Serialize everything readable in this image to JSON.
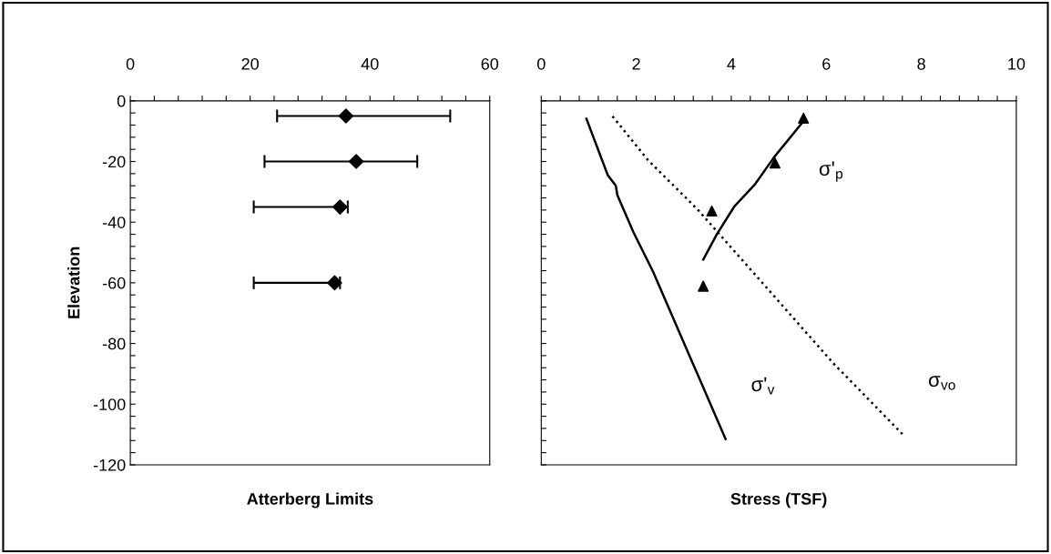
{
  "chart_data": [
    {
      "type": "scatter",
      "xlabel": "Atterberg Limits",
      "ylabel": "Elevation",
      "marker": "diamond",
      "grid": false,
      "legend": false,
      "xlim": [
        0,
        60
      ],
      "ylim": [
        -120,
        0
      ],
      "xticks": [
        0,
        {
          "value": 4,
          "label": null
        },
        {
          "value": 8,
          "label": null
        },
        {
          "value": 12,
          "label": null
        },
        {
          "value": 16,
          "label": null
        },
        20,
        {
          "value": 24,
          "label": null
        },
        {
          "value": 28,
          "label": null
        },
        {
          "value": 32,
          "label": null
        },
        {
          "value": 36,
          "label": null
        },
        40,
        {
          "value": 44,
          "label": null
        },
        {
          "value": 48,
          "label": null
        },
        {
          "value": 52,
          "label": null
        },
        {
          "value": 56,
          "label": null
        },
        60
      ],
      "yticks": [
        0,
        {
          "value": -4,
          "label": null
        },
        {
          "value": -8,
          "label": null
        },
        {
          "value": -12,
          "label": null
        },
        {
          "value": -16,
          "label": null
        },
        -20,
        {
          "value": -24,
          "label": null
        },
        {
          "value": -28,
          "label": null
        },
        {
          "value": -32,
          "label": null
        },
        {
          "value": -36,
          "label": null
        },
        -40,
        {
          "value": -44,
          "label": null
        },
        {
          "value": -48,
          "label": null
        },
        {
          "value": -52,
          "label": null
        },
        {
          "value": -56,
          "label": null
        },
        -60,
        {
          "value": -64,
          "label": null
        },
        {
          "value": -68,
          "label": null
        },
        {
          "value": -72,
          "label": null
        },
        {
          "value": -76,
          "label": null
        },
        -80,
        {
          "value": -84,
          "label": null
        },
        {
          "value": -88,
          "label": null
        },
        {
          "value": -92,
          "label": null
        },
        {
          "value": -96,
          "label": null
        },
        -100,
        {
          "value": -104,
          "label": null
        },
        {
          "value": -108,
          "label": null
        },
        {
          "value": -112,
          "label": null
        },
        {
          "value": -116,
          "label": null
        },
        -120
      ],
      "series": [
        {
          "color": "#000000",
          "x": [
            36,
            37.7,
            35,
            34.1
          ],
          "values": [
            -5,
            -20,
            -35,
            -60
          ],
          "xerrors": [
            [
              24.5,
              53.4
            ],
            [
              22.4,
              47.9
            ],
            [
              20.6,
              36.3
            ],
            [
              20.6,
              35
            ]
          ]
        }
      ]
    },
    {
      "type": "line",
      "xlabel": "Stress (TSF)",
      "grid": false,
      "legend": false,
      "tick_labels": "x",
      "xlim": [
        0,
        10
      ],
      "ylim": [
        -120,
        0
      ],
      "xticks": [
        0,
        {
          "value": 0.4,
          "label": null
        },
        {
          "value": 0.8,
          "label": null
        },
        {
          "value": 1.2,
          "label": null
        },
        {
          "value": 1.6,
          "label": null
        },
        2,
        {
          "value": 2.4,
          "label": null
        },
        {
          "value": 2.8,
          "label": null
        },
        {
          "value": 3.2,
          "label": null
        },
        {
          "value": 3.6,
          "label": null
        },
        4,
        {
          "value": 4.4,
          "label": null
        },
        {
          "value": 4.8,
          "label": null
        },
        {
          "value": 5.2,
          "label": null
        },
        {
          "value": 5.6,
          "label": null
        },
        6,
        {
          "value": 6.4,
          "label": null
        },
        {
          "value": 6.8,
          "label": null
        },
        {
          "value": 7.2,
          "label": null
        },
        {
          "value": 7.6,
          "label": null
        },
        8,
        {
          "value": 8.4,
          "label": null
        },
        {
          "value": 8.8,
          "label": null
        },
        {
          "value": 9.2,
          "label": null
        },
        {
          "value": 9.6,
          "label": null
        },
        10
      ],
      "yticks": [
        0,
        {
          "value": -4,
          "label": null
        },
        {
          "value": -8,
          "label": null
        },
        {
          "value": -12,
          "label": null
        },
        {
          "value": -16,
          "label": null
        },
        -20,
        {
          "value": -24,
          "label": null
        },
        {
          "value": -28,
          "label": null
        },
        {
          "value": -32,
          "label": null
        },
        {
          "value": -36,
          "label": null
        },
        -40,
        {
          "value": -44,
          "label": null
        },
        {
          "value": -48,
          "label": null
        },
        {
          "value": -52,
          "label": null
        },
        {
          "value": -56,
          "label": null
        },
        -60,
        {
          "value": -64,
          "label": null
        },
        {
          "value": -68,
          "label": null
        },
        {
          "value": -72,
          "label": null
        },
        {
          "value": -76,
          "label": null
        },
        -80,
        {
          "value": -84,
          "label": null
        },
        {
          "value": -88,
          "label": null
        },
        {
          "value": -92,
          "label": null
        },
        {
          "value": -96,
          "label": null
        },
        -100,
        {
          "value": -104,
          "label": null
        },
        {
          "value": -108,
          "label": null
        },
        {
          "value": -112,
          "label": null
        },
        {
          "value": -116,
          "label": null
        },
        -120
      ],
      "series": [
        {
          "type": "line",
          "name": "σ'$_{v}$",
          "line_style": "solid",
          "color": "#000000",
          "x": [
            0.95,
            1.4,
            1.57,
            1.6,
            1.94,
            2.35,
            3.88
          ],
          "values": [
            -5.9,
            -24.5,
            -28,
            -31,
            -43.3,
            -56.2,
            -111.5
          ]
        },
        {
          "type": "line",
          "name": "σ$_{vo}$",
          "line_style": "dotted",
          "color": "#000000",
          "x": [
            1.5,
            2.25,
            3.29,
            4.35,
            6.14,
            7.61
          ],
          "values": [
            -5.1,
            -19.6,
            -35.8,
            -54.6,
            -86.4,
            -110
          ]
        },
        {
          "type": "line",
          "name": "σ'$_{p}$",
          "line_style": "solid",
          "color": "#000000",
          "x": [
            3.41,
            3.7,
            4.07,
            4.49,
            4.9,
            5.52
          ],
          "values": [
            -52.3,
            -43.9,
            -34.7,
            -27.7,
            -18.6,
            -6.7
          ]
        },
        {
          "type": "scatter",
          "marker": "triangle",
          "color": "#000000",
          "x": [
            5.52,
            4.92,
            3.59,
            3.41
          ],
          "values": [
            -5.7,
            -20.5,
            -36.3,
            -61.1
          ]
        }
      ]
    }
  ]
}
